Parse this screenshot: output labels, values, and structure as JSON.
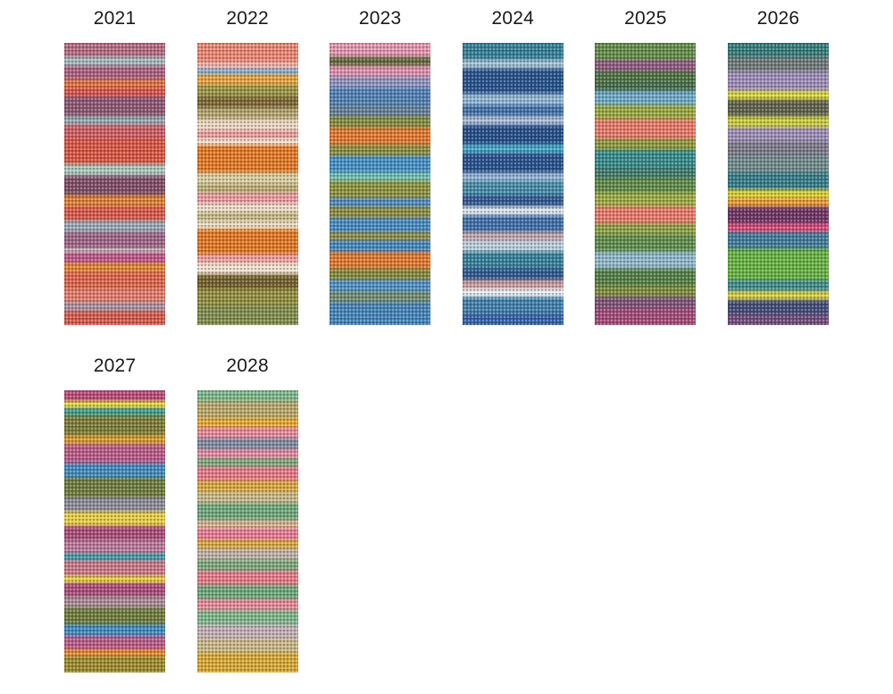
{
  "page": {
    "background": "#ffffff",
    "description_colors": {
      "label_text": "#1a1a1a"
    }
  },
  "swatches": [
    {
      "label": "2021",
      "stripes": [
        [
          "#b5687f",
          5
        ],
        [
          "#a3bcc0",
          3
        ],
        [
          "#a95f7d",
          5
        ],
        [
          "#de6f3c",
          3
        ],
        [
          "#d8504a",
          3
        ],
        [
          "#8a5472",
          7
        ],
        [
          "#93a8ae",
          3
        ],
        [
          "#cc5a62",
          5
        ],
        [
          "#d9523f",
          9
        ],
        [
          "#a9cabf",
          4
        ],
        [
          "#7c4a64",
          7
        ],
        [
          "#de8030",
          4
        ],
        [
          "#d95547",
          5
        ],
        [
          "#97aab8",
          4
        ],
        [
          "#9b6286",
          6
        ],
        [
          "#c5aeb6",
          1
        ],
        [
          "#bd5289",
          4
        ],
        [
          "#e1872f",
          3
        ],
        [
          "#dd6247",
          6
        ],
        [
          "#e27b68",
          5
        ],
        [
          "#a890a2",
          3
        ],
        [
          "#d5574a",
          5
        ]
      ]
    },
    {
      "label": "2022",
      "stripes": [
        [
          "#ec8572",
          7
        ],
        [
          "#f2b3ab",
          2
        ],
        [
          "#85aed0",
          2
        ],
        [
          "#e8a23c",
          4
        ],
        [
          "#97953f",
          4
        ],
        [
          "#7a6430",
          4
        ],
        [
          "#b3a46c",
          4
        ],
        [
          "#ecd9c4",
          4
        ],
        [
          "#ea9c9c",
          3
        ],
        [
          "#f0e2cd",
          2
        ],
        [
          "#e4771f",
          10
        ],
        [
          "#dacfa2",
          4
        ],
        [
          "#b9ae72",
          3
        ],
        [
          "#ec9ba1",
          4
        ],
        [
          "#eedfcb",
          3
        ],
        [
          "#c4b985",
          3
        ],
        [
          "#eadbc0",
          3
        ],
        [
          "#e2761d",
          9
        ],
        [
          "#ef9f9f",
          3
        ],
        [
          "#f2e5d3",
          4
        ],
        [
          "#6f5c26",
          5
        ],
        [
          "#8f8d3a",
          6
        ],
        [
          "#7d8c4a",
          7
        ]
      ]
    },
    {
      "label": "2023",
      "stripes": [
        [
          "#e495b2",
          5
        ],
        [
          "#5d6637",
          3
        ],
        [
          "#de8fad",
          4
        ],
        [
          "#8a93bd",
          4
        ],
        [
          "#4a7fb5",
          6
        ],
        [
          "#5f7f9a",
          4
        ],
        [
          "#7f8b3c",
          4
        ],
        [
          "#e2762a",
          6
        ],
        [
          "#8a8b3c",
          4
        ],
        [
          "#3e8fc6",
          6
        ],
        [
          "#6fc0b0",
          3
        ],
        [
          "#8a9138",
          6
        ],
        [
          "#4a8ac0",
          3
        ],
        [
          "#8a8b3c",
          4
        ],
        [
          "#4189c4",
          5
        ],
        [
          "#8c8a45",
          3
        ],
        [
          "#3c87c2",
          4
        ],
        [
          "#e0762b",
          6
        ],
        [
          "#82883a",
          4
        ],
        [
          "#4a8ec8",
          4
        ],
        [
          "#6f8a70",
          4
        ],
        [
          "#3f83ba",
          8
        ]
      ]
    },
    {
      "label": "2024",
      "stripes": [
        [
          "#2e7e96",
          6
        ],
        [
          "#9fc2d8",
          3
        ],
        [
          "#1f4f8c",
          9
        ],
        [
          "#8fb8d8",
          4
        ],
        [
          "#3a6fa8",
          4
        ],
        [
          "#a8bcd8",
          3
        ],
        [
          "#1e4a88",
          7
        ],
        [
          "#3da8c8",
          3
        ],
        [
          "#204e8c",
          7
        ],
        [
          "#90b4d4",
          3
        ],
        [
          "#3f8aa8",
          5
        ],
        [
          "#2a5490",
          4
        ],
        [
          "#dce8f0",
          3
        ],
        [
          "#3a6ca8",
          6
        ],
        [
          "#c0a4ae",
          3
        ],
        [
          "#b8d0e0",
          4
        ],
        [
          "#2f7e9a",
          6
        ],
        [
          "#27548e",
          4
        ],
        [
          "#c89aa0",
          3
        ],
        [
          "#e8eef2",
          3
        ],
        [
          "#3a7eaa",
          6
        ],
        [
          "#2f5fa6",
          4
        ]
      ]
    },
    {
      "label": "2025",
      "stripes": [
        [
          "#5e8c46",
          6
        ],
        [
          "#8c5880",
          4
        ],
        [
          "#4a7040",
          4
        ],
        [
          "#3f6b4a",
          3
        ],
        [
          "#68aac8",
          5
        ],
        [
          "#96a83c",
          5
        ],
        [
          "#e87868",
          7
        ],
        [
          "#8a9838",
          4
        ],
        [
          "#2f8a8c",
          6
        ],
        [
          "#3a7a6a",
          4
        ],
        [
          "#5a8a44",
          5
        ],
        [
          "#9aaa3e",
          5
        ],
        [
          "#e87868",
          6
        ],
        [
          "#8aa040",
          4
        ],
        [
          "#5a8c48",
          6
        ],
        [
          "#8cb8cc",
          6
        ],
        [
          "#4e7e42",
          6
        ],
        [
          "#7a8a3a",
          4
        ],
        [
          "#7a5078",
          4
        ],
        [
          "#a04878",
          6
        ]
      ]
    },
    {
      "label": "2026",
      "stripes": [
        [
          "#2f7a7a",
          5
        ],
        [
          "#6a7878",
          5
        ],
        [
          "#9a8cb8",
          7
        ],
        [
          "#d8d83a",
          3
        ],
        [
          "#5a5f48",
          6
        ],
        [
          "#c8cc3a",
          4
        ],
        [
          "#9a8cb8",
          5
        ],
        [
          "#787888",
          5
        ],
        [
          "#6a8a8a",
          6
        ],
        [
          "#2f7a88",
          6
        ],
        [
          "#d8d02f",
          3
        ],
        [
          "#e89a30",
          3
        ],
        [
          "#6a2f62",
          6
        ],
        [
          "#d84878",
          3
        ],
        [
          "#3a7a9a",
          6
        ],
        [
          "#62b23e",
          11
        ],
        [
          "#3a8a8a",
          4
        ],
        [
          "#d8d040",
          3
        ],
        [
          "#3c4878",
          5
        ],
        [
          "#6a4a7a",
          4
        ]
      ]
    },
    {
      "label": "2027",
      "stripes": [
        [
          "#b84878",
          4
        ],
        [
          "#e8d83a",
          2
        ],
        [
          "#3f9a88",
          3
        ],
        [
          "#7a7a32",
          7
        ],
        [
          "#d89a2a",
          3
        ],
        [
          "#b85888",
          7
        ],
        [
          "#3a8ac0",
          5
        ],
        [
          "#6a7a38",
          7
        ],
        [
          "#8a8a9a",
          5
        ],
        [
          "#e8d040",
          5
        ],
        [
          "#a84878",
          5
        ],
        [
          "#b87898",
          5
        ],
        [
          "#3a9aa8",
          2
        ],
        [
          "#c87888",
          6
        ],
        [
          "#e8d43a",
          2
        ],
        [
          "#a84878",
          5
        ],
        [
          "#a88a98",
          4
        ],
        [
          "#6a7a38",
          6
        ],
        [
          "#3a8ac0",
          4
        ],
        [
          "#b85888",
          5
        ],
        [
          "#e8882a",
          2
        ],
        [
          "#9a8a28",
          6
        ]
      ]
    },
    {
      "label": "2028",
      "stripes": [
        [
          "#7ab88a",
          4
        ],
        [
          "#b8a868",
          6
        ],
        [
          "#e8a82a",
          3
        ],
        [
          "#e88898",
          4
        ],
        [
          "#7a8aa0",
          4
        ],
        [
          "#e888a0",
          3
        ],
        [
          "#7aa87a",
          3
        ],
        [
          "#e87888",
          5
        ],
        [
          "#d8a83a",
          4
        ],
        [
          "#c8b888",
          4
        ],
        [
          "#6aa87a",
          6
        ],
        [
          "#d8b090",
          3
        ],
        [
          "#e87898",
          4
        ],
        [
          "#d8a83a",
          3
        ],
        [
          "#c0b0a8",
          4
        ],
        [
          "#7aa87a",
          4
        ],
        [
          "#e87888",
          5
        ],
        [
          "#6aa87a",
          5
        ],
        [
          "#e88898",
          4
        ],
        [
          "#7ab88a",
          5
        ],
        [
          "#c0b0b8",
          5
        ],
        [
          "#c8b888",
          5
        ],
        [
          "#d8a830",
          7
        ]
      ]
    }
  ]
}
